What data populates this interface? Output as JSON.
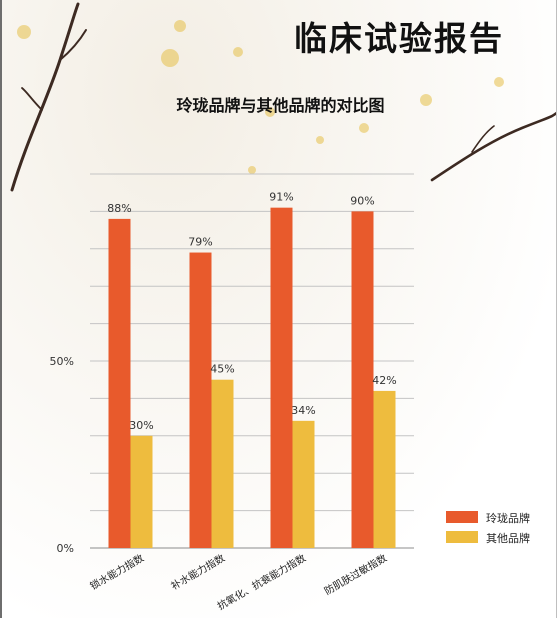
{
  "report": {
    "title": "临床试验报告"
  },
  "icons": {
    "decoration": "plum-blossom-branch"
  },
  "chart_data": {
    "type": "bar",
    "title": "玲珑品牌与其他品牌的对比图",
    "xlabel": "",
    "ylabel": "",
    "categories": [
      "锁水能力指数",
      "补水能力指数",
      "抗氧化、抗衰能力指数",
      "防肌肤过敏指数"
    ],
    "series": [
      {
        "name": "玲珑品牌",
        "values": [
          88,
          79,
          91,
          90
        ],
        "labels": [
          "88%",
          "79%",
          "91%",
          "90%"
        ],
        "color": "#e85a2c"
      },
      {
        "name": "其他品牌",
        "values": [
          30,
          45,
          34,
          42
        ],
        "labels": [
          "30%",
          "45%",
          "34%",
          "42%"
        ],
        "color": "#eebc3e"
      }
    ],
    "ylim": [
      0,
      100
    ],
    "yticks": [
      0,
      50
    ],
    "ytick_labels": [
      "0%",
      "50%"
    ],
    "grid": true,
    "legend": "bottom-right"
  }
}
